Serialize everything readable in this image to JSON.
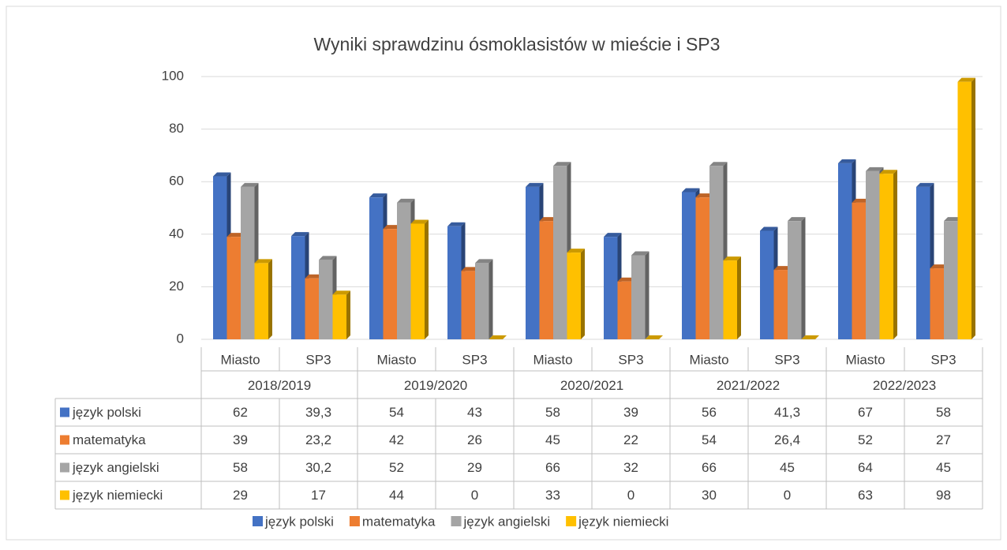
{
  "chart_data": {
    "type": "bar3d",
    "title": "Wyniki sprawdzinu ósmoklasistów w mieście i SP3",
    "categories": [
      "Miasto",
      "SP3",
      "Miasto",
      "SP3",
      "Miasto",
      "SP3",
      "Miasto",
      "SP3",
      "Miasto",
      "SP3"
    ],
    "groups": [
      "2018/2019",
      "2019/2020",
      "2020/2021",
      "2021/2022",
      "2022/2023"
    ],
    "series": [
      {
        "name": "język polski",
        "color": "#4472c4",
        "values": [
          62,
          39.3,
          54,
          43,
          58,
          39,
          56,
          41.3,
          67,
          58
        ],
        "value_labels": [
          "62",
          "39,3",
          "54",
          "43",
          "58",
          "39",
          "56",
          "41,3",
          "67",
          "58"
        ]
      },
      {
        "name": "matematyka",
        "color": "#ed7d31",
        "values": [
          39,
          23.2,
          42,
          26,
          45,
          22,
          54,
          26.4,
          52,
          27
        ],
        "value_labels": [
          "39",
          "23,2",
          "42",
          "26",
          "45",
          "22",
          "54",
          "26,4",
          "52",
          "27"
        ]
      },
      {
        "name": "język angielski",
        "color": "#a5a5a5",
        "values": [
          58,
          30.2,
          52,
          29,
          66,
          32,
          66,
          45,
          64,
          45
        ],
        "value_labels": [
          "58",
          "30,2",
          "52",
          "29",
          "66",
          "32",
          "66",
          "45",
          "64",
          "45"
        ]
      },
      {
        "name": "język niemiecki",
        "color": "#ffc000",
        "values": [
          29,
          17,
          44,
          0,
          33,
          0,
          30,
          0,
          63,
          98
        ]
      }
    ],
    "ylim": [
      0,
      100
    ],
    "yticks": [
      0,
      20,
      40,
      60,
      80,
      100
    ],
    "grid": true,
    "legend": "bottom"
  }
}
